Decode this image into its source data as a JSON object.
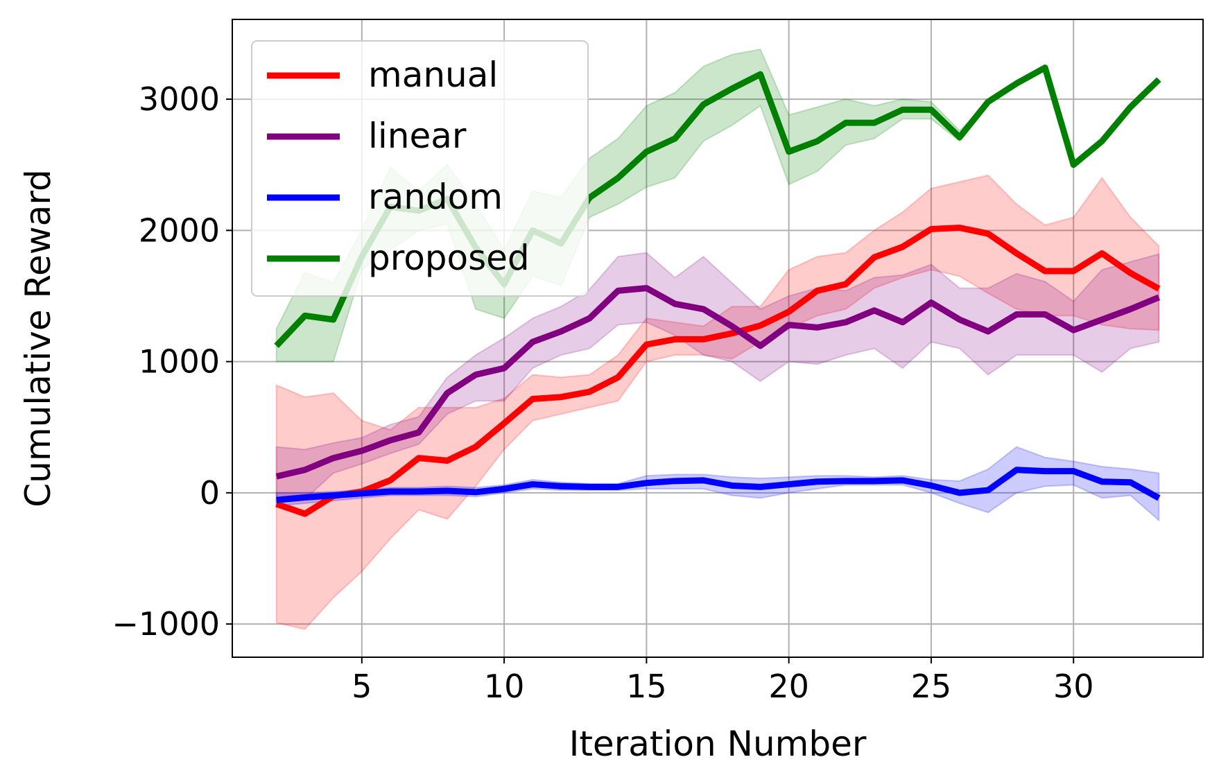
{
  "chart_data": {
    "type": "line",
    "x_label": "Iteration Number",
    "y_label": "Cumulative Reward",
    "x": [
      2,
      3,
      4,
      5,
      6,
      7,
      8,
      9,
      10,
      11,
      12,
      13,
      14,
      15,
      16,
      17,
      18,
      19,
      20,
      21,
      22,
      23,
      24,
      25,
      26,
      27,
      28,
      29,
      30,
      31,
      32,
      33
    ],
    "xlim": [
      0.45,
      34.55
    ],
    "xticks": [
      5,
      10,
      15,
      20,
      25,
      30
    ],
    "ylim": [
      -1253,
      3608
    ],
    "yticks": [
      {
        "value": -1000,
        "label": "−1000"
      },
      0,
      1000,
      2000,
      3000
    ],
    "grid": true,
    "legend": "upper left",
    "series": [
      {
        "name": "manual",
        "color": "#ff0000",
        "values": [
          -85,
          -160,
          -25,
          10,
          95,
          265,
          245,
          350,
          530,
          715,
          730,
          770,
          880,
          1130,
          1170,
          1170,
          1215,
          1275,
          1380,
          1540,
          1590,
          1795,
          1875,
          2010,
          2020,
          1975,
          1825,
          1690,
          1690,
          1825,
          1675,
          1555
        ],
        "lower": [
          -990,
          -1040,
          -800,
          -600,
          -350,
          -130,
          -200,
          50,
          330,
          550,
          600,
          650,
          700,
          1000,
          1050,
          1050,
          1020,
          1150,
          1250,
          1350,
          1400,
          1560,
          1640,
          1700,
          1650,
          1520,
          1400,
          1350,
          1350,
          1280,
          1250,
          1240
        ],
        "upper": [
          820,
          730,
          760,
          550,
          480,
          650,
          650,
          650,
          720,
          900,
          880,
          900,
          1050,
          1330,
          1300,
          1270,
          1420,
          1420,
          1700,
          1800,
          1830,
          2000,
          2140,
          2320,
          2370,
          2420,
          2200,
          2040,
          2100,
          2400,
          2100,
          1880
        ]
      },
      {
        "name": "linear",
        "color": "#800080",
        "values": [
          125,
          175,
          265,
          320,
          400,
          460,
          760,
          900,
          950,
          1150,
          1230,
          1330,
          1540,
          1560,
          1440,
          1400,
          1270,
          1120,
          1280,
          1260,
          1300,
          1390,
          1300,
          1450,
          1320,
          1230,
          1360,
          1360,
          1240,
          1320,
          1400,
          1490
        ],
        "lower": [
          -70,
          -50,
          150,
          220,
          300,
          370,
          600,
          700,
          700,
          950,
          1050,
          1100,
          1280,
          1300,
          1200,
          1050,
          1000,
          850,
          1000,
          980,
          1050,
          1100,
          950,
          1150,
          1100,
          900,
          1050,
          1050,
          1050,
          920,
          1100,
          1150
        ],
        "upper": [
          350,
          330,
          380,
          420,
          520,
          580,
          880,
          1050,
          1180,
          1330,
          1420,
          1550,
          1800,
          1830,
          1640,
          1800,
          1600,
          1400,
          1500,
          1560,
          1540,
          1640,
          1660,
          1740,
          1560,
          1560,
          1670,
          1610,
          1460,
          1700,
          1760,
          1820
        ]
      },
      {
        "name": "random",
        "color": "#0000ff",
        "values": [
          -55,
          -35,
          -20,
          -5,
          10,
          10,
          15,
          5,
          30,
          65,
          50,
          45,
          45,
          75,
          90,
          95,
          55,
          45,
          65,
          85,
          90,
          90,
          95,
          55,
          0,
          20,
          175,
          165,
          165,
          85,
          80,
          -40
        ],
        "lower": [
          -100,
          -80,
          -60,
          -40,
          -20,
          -20,
          -20,
          -30,
          0,
          30,
          20,
          20,
          20,
          30,
          30,
          30,
          -20,
          -40,
          0,
          30,
          60,
          60,
          60,
          0,
          -80,
          -150,
          0,
          50,
          60,
          -40,
          -20,
          -210
        ],
        "upper": [
          0,
          0,
          10,
          20,
          40,
          40,
          50,
          40,
          60,
          100,
          80,
          70,
          70,
          130,
          140,
          140,
          120,
          110,
          120,
          130,
          130,
          120,
          130,
          100,
          90,
          180,
          350,
          270,
          240,
          200,
          180,
          150
        ]
      },
      {
        "name": "proposed",
        "color": "#008000",
        "values": [
          1120,
          1350,
          1320,
          1800,
          2180,
          2150,
          2240,
          1870,
          1590,
          2000,
          1900,
          2250,
          2400,
          2600,
          2700,
          2960,
          3080,
          3190,
          2600,
          2680,
          2820,
          2820,
          2920,
          2920,
          2710,
          2980,
          3120,
          3240,
          2500,
          2680,
          2940,
          3150
        ],
        "lower": [
          1000,
          1000,
          1000,
          1700,
          1850,
          2000,
          2050,
          1400,
          1330,
          1650,
          1580,
          2100,
          2200,
          2330,
          2400,
          2680,
          2800,
          2950,
          2350,
          2450,
          2650,
          2700,
          2850,
          2850,
          2680,
          2980,
          3120,
          3240,
          2500,
          2680,
          2940,
          3150
        ],
        "upper": [
          1250,
          1680,
          1600,
          2000,
          2480,
          2300,
          2500,
          2200,
          1850,
          2300,
          2250,
          2550,
          2700,
          2950,
          3050,
          3250,
          3340,
          3380,
          2880,
          2940,
          3000,
          2950,
          3000,
          2980,
          2760,
          2980,
          3120,
          3240,
          2500,
          2680,
          2940,
          3150
        ]
      }
    ]
  }
}
